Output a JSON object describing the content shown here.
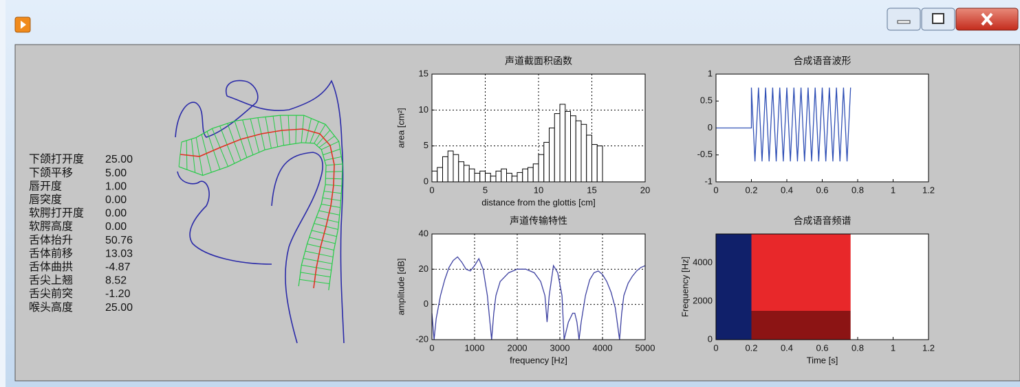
{
  "parameters": [
    {
      "label": "下颌打开度",
      "value": "25.00"
    },
    {
      "label": "下颌平移",
      "value": "5.00"
    },
    {
      "label": "唇开度",
      "value": "1.00"
    },
    {
      "label": "唇突度",
      "value": "0.00"
    },
    {
      "label": "软腭打开度",
      "value": "0.00"
    },
    {
      "label": "软腭高度",
      "value": "0.00"
    },
    {
      "label": "舌体抬升",
      "value": "50.76"
    },
    {
      "label": "舌体前移",
      "value": "13.03"
    },
    {
      "label": "舌体曲拱",
      "value": "-4.87"
    },
    {
      "label": "舌尖上翘",
      "value": "8.52"
    },
    {
      "label": "舌尖前突",
      "value": "-1.20"
    },
    {
      "label": "喉头高度",
      "value": "25.00"
    }
  ],
  "chart_data": [
    {
      "type": "histogram",
      "title": "声道截面积函数",
      "xlabel": "distance from the glottis [cm]",
      "ylabel": "area [cm²]",
      "bins": [
        0,
        0.5,
        1,
        1.5,
        2,
        2.5,
        3,
        3.5,
        4,
        4.5,
        5,
        5.5,
        6,
        6.5,
        7,
        7.5,
        8,
        8.5,
        9,
        9.5,
        10,
        10.5,
        11,
        11.5,
        12,
        12.5,
        13,
        13.5,
        14,
        14.5,
        15,
        15.5,
        16
      ],
      "values": [
        1.5,
        2.0,
        3.5,
        4.3,
        3.8,
        2.8,
        2.3,
        1.8,
        1.2,
        1.5,
        1.2,
        0.8,
        1.5,
        1.8,
        1.2,
        0.8,
        1.3,
        1.8,
        2.0,
        2.5,
        3.8,
        5.5,
        7.5,
        9.5,
        10.8,
        9.8,
        9.2,
        8.5,
        8.0,
        6.5,
        5.2,
        5.0
      ],
      "color": "#ffffff",
      "xlim": [
        0,
        20
      ],
      "xticks": [
        0,
        5,
        10,
        15,
        20
      ],
      "ylim": [
        0,
        15
      ],
      "yticks": [
        0,
        5,
        10,
        15
      ],
      "grid": true
    },
    {
      "type": "line",
      "title": "声道传输特性",
      "xlabel": "frequency [Hz]",
      "ylabel": "amplitude [dB]",
      "x": [
        0,
        50,
        100,
        200,
        300,
        400,
        500,
        600,
        700,
        800,
        900,
        1000,
        1100,
        1200,
        1300,
        1400,
        1450,
        1500,
        1600,
        1800,
        2000,
        2200,
        2400,
        2550,
        2650,
        2700,
        2750,
        2850,
        2950,
        3050,
        3100,
        3200,
        3300,
        3350,
        3400,
        3450,
        3500,
        3600,
        3700,
        3800,
        3900,
        4000,
        4100,
        4200,
        4300,
        4400,
        4450,
        4500,
        4600,
        4700,
        4800,
        4900,
        5000
      ],
      "values": [
        -5,
        -20,
        -8,
        5,
        14,
        21,
        25,
        27,
        24,
        20,
        19,
        22,
        26,
        20,
        5,
        -20,
        -5,
        5,
        13,
        18,
        20,
        20,
        18,
        13,
        5,
        -10,
        5,
        22,
        18,
        5,
        -20,
        -10,
        -5,
        -5,
        -10,
        -20,
        -10,
        5,
        14,
        18,
        19,
        17,
        13,
        7,
        -2,
        -20,
        -5,
        5,
        12,
        16,
        19,
        21,
        22
      ],
      "color": "#3b3fa0",
      "xlim": [
        0,
        5000
      ],
      "xticks": [
        0,
        1000,
        2000,
        3000,
        4000,
        5000
      ],
      "ylim": [
        -20,
        40
      ],
      "yticks": [
        -20,
        0,
        20,
        40
      ],
      "grid": true
    },
    {
      "type": "line",
      "title": "合成语音波形",
      "x": [
        0,
        0.2,
        0.2,
        0.22,
        0.24,
        0.26,
        0.28,
        0.3,
        0.32,
        0.34,
        0.36,
        0.38,
        0.4,
        0.42,
        0.44,
        0.46,
        0.48,
        0.5,
        0.52,
        0.54,
        0.56,
        0.58,
        0.6,
        0.62,
        0.64,
        0.66,
        0.68,
        0.7,
        0.72,
        0.74,
        0.76
      ],
      "values": [
        0,
        0,
        0.75,
        -0.62,
        0.75,
        -0.62,
        0.75,
        -0.62,
        0.75,
        -0.62,
        0.75,
        -0.62,
        0.75,
        -0.62,
        0.75,
        -0.62,
        0.75,
        -0.62,
        0.75,
        -0.62,
        0.75,
        -0.62,
        0.75,
        -0.62,
        0.75,
        -0.62,
        0.75,
        -0.62,
        0.75,
        -0.62,
        0.75
      ],
      "color": "#2f4fb5",
      "xlim": [
        0,
        1.2
      ],
      "xticks": [
        0,
        0.2,
        0.4,
        0.6,
        0.8,
        1,
        1.2
      ],
      "ylim": [
        -1,
        1
      ],
      "yticks": [
        -1,
        -0.5,
        0,
        0.5,
        1
      ],
      "grid": false
    },
    {
      "type": "heatmap",
      "title": "合成语音频谱",
      "xlabel": "Time [s]",
      "ylabel": "Frequency [Hz]",
      "rects": [
        {
          "x0": 0,
          "x1": 0.2,
          "y0": 0,
          "y1": 5500,
          "color": "#10206a"
        },
        {
          "x0": 0.2,
          "x1": 0.76,
          "y0": 1500,
          "y1": 5500,
          "color": "#e8282a"
        },
        {
          "x0": 0.2,
          "x1": 0.76,
          "y0": 0,
          "y1": 1500,
          "color": "#8c1414"
        }
      ],
      "xlim": [
        0,
        1.2
      ],
      "xticks": [
        0,
        0.2,
        0.4,
        0.6,
        0.8,
        1,
        1.2
      ],
      "ylim": [
        0,
        5500
      ],
      "yticks": [
        0,
        2000,
        4000
      ],
      "grid": false
    }
  ]
}
